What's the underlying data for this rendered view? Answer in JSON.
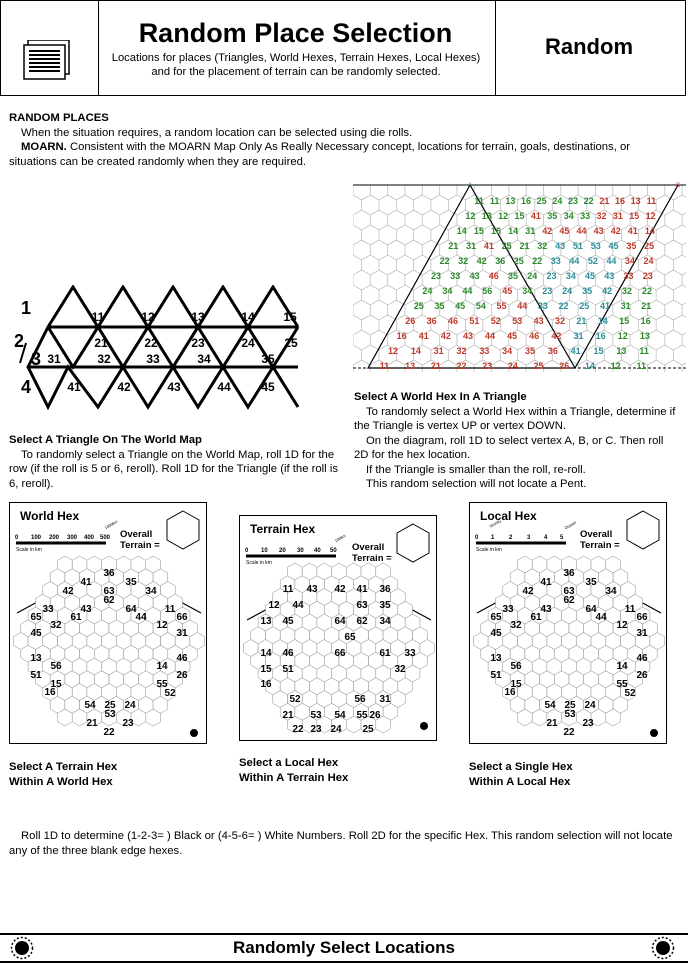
{
  "header": {
    "title": "Random Place Selection",
    "subtitle": "Locations for places (Triangles, World Hexes, Terrain Hexes, Local Hexes) and for the placement of terrain can be randomly selected.",
    "section": "Random"
  },
  "intro": {
    "heading": "RANDOM PLACES",
    "line1": "When the situation requires, a random location can be selected using die rolls.",
    "moarn_label": "MOARN.",
    "moarn_text": " Consistent with the MOARN Map Only As Really Necessary concept, locations for terrain, goals, destinations, or situations can be created randomly when they are required."
  },
  "triangle_map": {
    "row_labels": [
      "1",
      "2",
      "3",
      "4"
    ],
    "rows": [
      [
        "11",
        "12",
        "13",
        "14",
        "15"
      ],
      [
        "21",
        "22",
        "23",
        "24",
        "25"
      ],
      [
        "31",
        "32",
        "33",
        "34",
        "35"
      ],
      [
        "41",
        "42",
        "43",
        "44",
        "45"
      ]
    ]
  },
  "triangle_text": {
    "heading": "Select A Triangle On The World Map",
    "body": "To randomly select a Triangle on the World Map, roll 1D for the row (if the roll is 5 or 6, reroll). Roll 1D for the Triangle (if the roll is 6, reroll)."
  },
  "world_hex_diagram": {
    "vertex_a": "A",
    "vertex_c": "C",
    "rows": [
      [
        "11",
        "11",
        "13",
        "16",
        "25",
        "24",
        "23",
        "22",
        "21",
        "16",
        "13",
        "11"
      ],
      [
        "12",
        "13",
        "12",
        "15",
        "41",
        "35",
        "34",
        "33",
        "32",
        "31",
        "15",
        "12"
      ],
      [
        "14",
        "15",
        "16",
        "14",
        "31",
        "42",
        "45",
        "44",
        "43",
        "42",
        "41",
        "14"
      ],
      [
        "21",
        "31",
        "41",
        "25",
        "21",
        "32",
        "43",
        "51",
        "53",
        "45",
        "35",
        "25"
      ],
      [
        "22",
        "32",
        "42",
        "36",
        "25",
        "22",
        "33",
        "44",
        "52",
        "44",
        "34",
        "24"
      ],
      [
        "23",
        "33",
        "43",
        "46",
        "35",
        "24",
        "23",
        "34",
        "45",
        "43",
        "33",
        "23"
      ],
      [
        "24",
        "34",
        "44",
        "56",
        "45",
        "34",
        "23",
        "24",
        "35",
        "42",
        "32",
        "22"
      ],
      [
        "25",
        "35",
        "45",
        "54",
        "55",
        "44",
        "33",
        "22",
        "25",
        "41",
        "31",
        "21"
      ],
      [
        "26",
        "36",
        "46",
        "51",
        "52",
        "53",
        "43",
        "32",
        "21",
        "14",
        "15",
        "16"
      ],
      [
        "16",
        "41",
        "42",
        "43",
        "44",
        "45",
        "46",
        "42",
        "31",
        "16",
        "12",
        "13"
      ],
      [
        "12",
        "14",
        "31",
        "32",
        "33",
        "34",
        "35",
        "36",
        "41",
        "15",
        "13",
        "11"
      ],
      [
        "11",
        "13",
        "21",
        "22",
        "23",
        "24",
        "25",
        "26",
        "14",
        "12",
        "11"
      ]
    ]
  },
  "world_hex_text": {
    "heading": "Select A World Hex In A Triangle",
    "p1": "To randomly select a World Hex within a Triangle, determine if the Triangle is vertex UP or vertex DOWN.",
    "p2": "On the diagram, roll 1D to select vertex A, B, or C. Then roll 2D for the hex location.",
    "p3": "If the Triangle is smaller than the roll, re-roll.",
    "p4": "This random selection will not locate a Pent."
  },
  "panels": [
    {
      "title": "World Hex",
      "scale": [
        "0",
        "100",
        "200",
        "300",
        "400",
        "500"
      ],
      "scale_caption": "Scale in km",
      "scale_note": "1000km",
      "overall": "Overall",
      "terrain": "Terrain =",
      "caption1": "Select A Terrain Hex",
      "caption2": "Within A World Hex"
    },
    {
      "title": "Terrain Hex",
      "scale": [
        "0",
        "10",
        "20",
        "30",
        "40",
        "50"
      ],
      "scale_caption": "Scale in km",
      "scale_note": "100km",
      "overall": "Overall",
      "terrain": "Terrain =",
      "caption1": "Select a Local Hex",
      "caption2": "Within A Terrain Hex"
    },
    {
      "title": "Local Hex",
      "scale": [
        "0",
        "1",
        "2",
        "3",
        "4",
        "5"
      ],
      "scale_caption": "Scale in km",
      "scale_note": "Distant",
      "scale_note2": "Vicinity",
      "overall": "Overall",
      "terrain": "Terrain =",
      "caption1": "Select a Single Hex",
      "caption2": "Within A Local Hex"
    }
  ],
  "hex_numbers_black": [
    "36",
    "41",
    "35",
    "42",
    "63",
    "34",
    "62",
    "43",
    "64",
    "33",
    "11",
    "65",
    "61",
    "44",
    "66",
    "32",
    "12",
    "45",
    "31",
    "13",
    "46",
    "56",
    "14",
    "51",
    "26",
    "15",
    "55",
    "16",
    "52",
    "54",
    "25",
    "24",
    "21",
    "53",
    "23",
    "22"
  ],
  "terrain_hex_numbers": [
    "11",
    "43",
    "42",
    "41",
    "36",
    "12",
    "44",
    "63",
    "35",
    "13",
    "45",
    "64",
    "62",
    "34",
    "65",
    "14",
    "46",
    "66",
    "61",
    "33",
    "15",
    "51",
    "32",
    "16",
    "52",
    "56",
    "31",
    "21",
    "53",
    "54",
    "55",
    "26",
    "22",
    "23",
    "24",
    "25"
  ],
  "closing": "Roll 1D to determine (1-2-3= ) Black or (4-5-6= ) White Numbers. Roll 2D for the specific Hex. This random selection will not locate any of the three blank edge hexes.",
  "footer": {
    "title": "Randomly Select Locations"
  }
}
